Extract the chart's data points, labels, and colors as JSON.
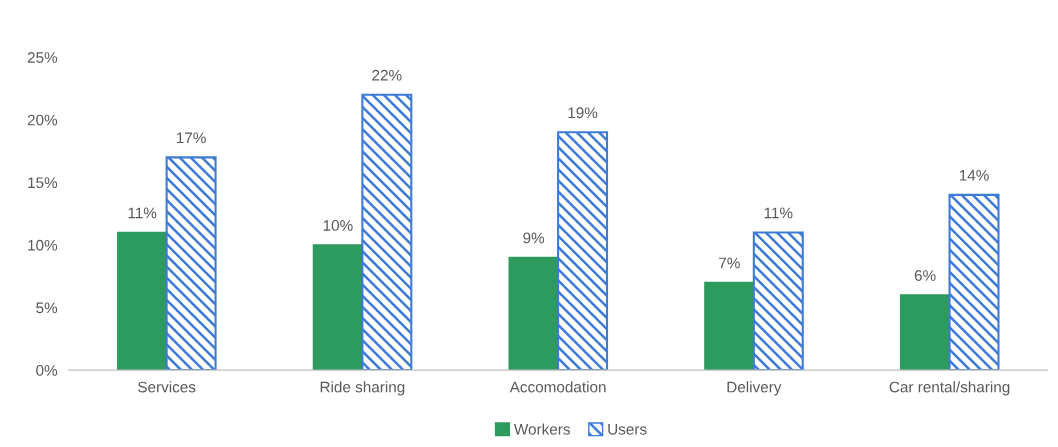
{
  "chart_data": {
    "type": "bar",
    "categories": [
      "Services",
      "Ride sharing",
      "Accomodation",
      "Delivery",
      "Car rental/sharing"
    ],
    "series": [
      {
        "name": "Workers",
        "color": "#2e9b5e",
        "values": [
          11,
          10,
          9,
          7,
          6
        ],
        "value_labels": [
          "11%",
          "10%",
          "9%",
          "7%",
          "6%"
        ]
      },
      {
        "name": "Users",
        "color": "#3d7bd6",
        "values": [
          17,
          22,
          19,
          11,
          14
        ],
        "value_labels": [
          "17%",
          "22%",
          "19%",
          "11%",
          "14%"
        ]
      }
    ],
    "ylim": [
      0,
      25
    ],
    "yticks": [
      {
        "value": 0,
        "label": "0%"
      },
      {
        "value": 5,
        "label": "5%"
      },
      {
        "value": 10,
        "label": "10%"
      },
      {
        "value": 15,
        "label": "15%"
      },
      {
        "value": 20,
        "label": "20%"
      },
      {
        "value": 25,
        "label": "25%"
      }
    ],
    "grid": false,
    "legend": "bottom"
  }
}
